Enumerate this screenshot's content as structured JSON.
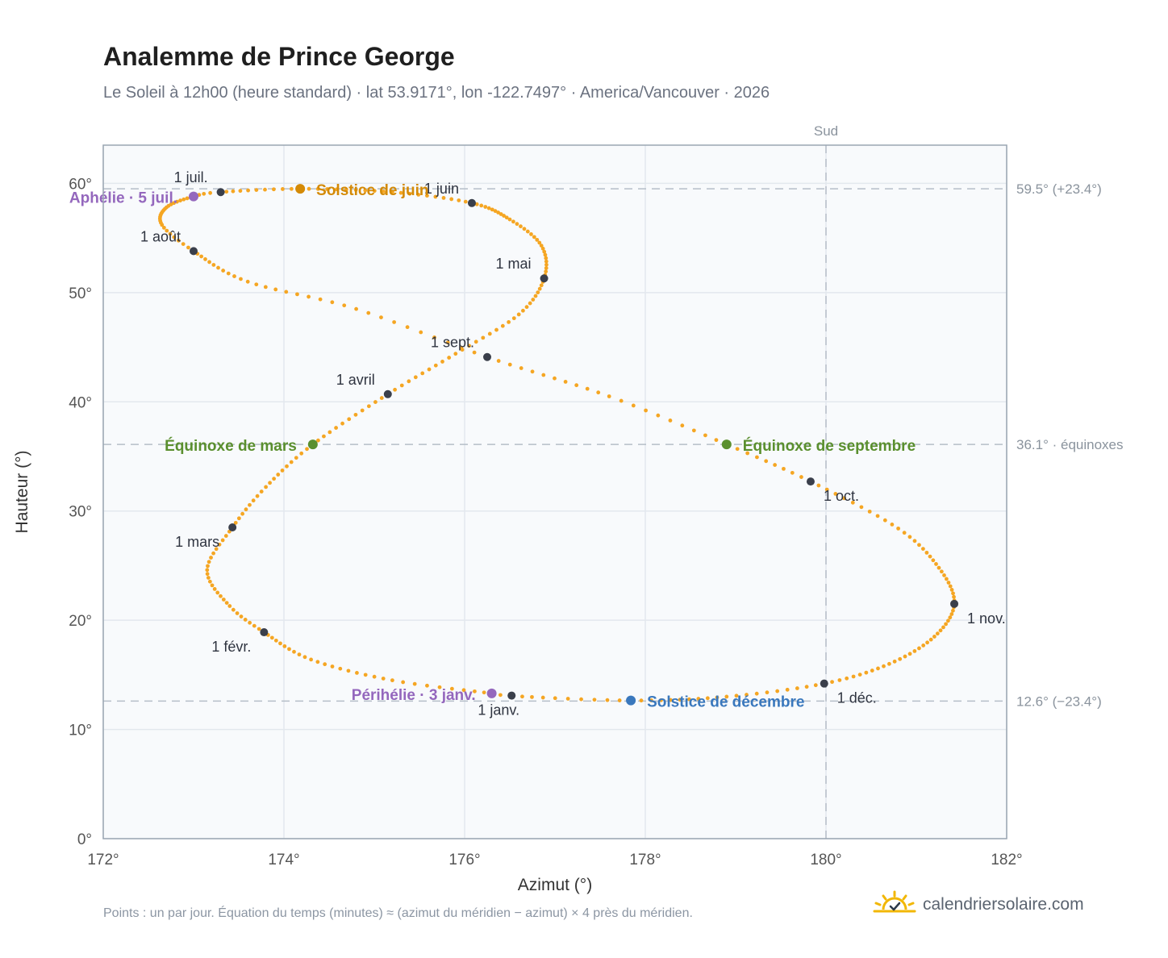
{
  "header": {
    "title": "Analemme de Prince George",
    "subtitle": "Le Soleil à 12h00 (heure standard) · lat 53.9171°, lon -122.7497° · America/Vancouver · 2026"
  },
  "footer": {
    "note": "Points : un par jour. Équation du temps (minutes) ≈ (azimut du méridien − azimut) × 4 près du méridien.",
    "brand": "calendriersolaire.com"
  },
  "colors": {
    "curve": "#f5a623",
    "month_dot": "#3a3f4b",
    "solstice_june": "#d48a06",
    "solstice_december": "#3a78bd",
    "equinox": "#5a8f2e",
    "apsis": "#9467bd",
    "plot_bg": "#f8fafc",
    "grid": "#e3e8ee",
    "ref_line": "#b5bec8"
  },
  "chart_data": {
    "type": "scatter",
    "title": "Analemme de Prince George",
    "xlabel": "Azimut (°)",
    "ylabel": "Hauteur (°)",
    "xlim": [
      172,
      182
    ],
    "ylim": [
      0,
      63.5
    ],
    "x_ticks": [
      "172°",
      "174°",
      "176°",
      "178°",
      "180°",
      "182°"
    ],
    "y_ticks": [
      "0°",
      "10°",
      "20°",
      "30°",
      "40°",
      "50°",
      "60°"
    ],
    "grid": true,
    "meridian": {
      "x": 180,
      "label": "Sud"
    },
    "reference_lines": [
      {
        "y": 59.5,
        "label": "59.5° (+23.4°)"
      },
      {
        "y": 36.1,
        "label": "36.1° · équinoxes"
      },
      {
        "y": 12.6,
        "label": "12.6° (−23.4°)"
      }
    ],
    "curve_keypoints": [
      {
        "day": 1,
        "az": 176.52,
        "alt": 13.1
      },
      {
        "day": 3,
        "az": 176.3,
        "alt": 13.3
      },
      {
        "day": 12,
        "az": 175.2,
        "alt": 14.5
      },
      {
        "day": 22,
        "az": 174.3,
        "alt": 16.4
      },
      {
        "day": 32,
        "az": 173.78,
        "alt": 18.9
      },
      {
        "day": 40,
        "az": 173.4,
        "alt": 21.3
      },
      {
        "day": 50,
        "az": 173.15,
        "alt": 24.6
      },
      {
        "day": 60,
        "az": 173.43,
        "alt": 28.5
      },
      {
        "day": 69,
        "az": 173.8,
        "alt": 32.2
      },
      {
        "day": 79,
        "az": 174.32,
        "alt": 36.1
      },
      {
        "day": 91,
        "az": 175.15,
        "alt": 40.7
      },
      {
        "day": 101,
        "az": 175.9,
        "alt": 44.4
      },
      {
        "day": 111,
        "az": 176.6,
        "alt": 48.0
      },
      {
        "day": 121,
        "az": 176.88,
        "alt": 51.3
      },
      {
        "day": 131,
        "az": 176.85,
        "alt": 54.3
      },
      {
        "day": 141,
        "az": 176.5,
        "alt": 56.7
      },
      {
        "day": 152,
        "az": 176.08,
        "alt": 58.2
      },
      {
        "day": 162,
        "az": 175.2,
        "alt": 59.2
      },
      {
        "day": 172,
        "az": 174.18,
        "alt": 59.5
      },
      {
        "day": 182,
        "az": 173.3,
        "alt": 59.2
      },
      {
        "day": 186,
        "az": 173.0,
        "alt": 58.8
      },
      {
        "day": 195,
        "az": 172.7,
        "alt": 57.8
      },
      {
        "day": 205,
        "az": 172.65,
        "alt": 56.2
      },
      {
        "day": 213,
        "az": 173.0,
        "alt": 53.8
      },
      {
        "day": 224,
        "az": 173.6,
        "alt": 51.0
      },
      {
        "day": 234,
        "az": 174.8,
        "alt": 48.5
      },
      {
        "day": 244,
        "az": 176.25,
        "alt": 44.1
      },
      {
        "day": 255,
        "az": 177.6,
        "alt": 40.5
      },
      {
        "day": 265,
        "az": 178.9,
        "alt": 36.1
      },
      {
        "day": 274,
        "az": 179.83,
        "alt": 32.7
      },
      {
        "day": 285,
        "az": 180.8,
        "alt": 28.4
      },
      {
        "day": 295,
        "az": 181.25,
        "alt": 24.8
      },
      {
        "day": 305,
        "az": 181.42,
        "alt": 21.5
      },
      {
        "day": 315,
        "az": 181.2,
        "alt": 18.5
      },
      {
        "day": 325,
        "az": 180.7,
        "alt": 16.0
      },
      {
        "day": 335,
        "az": 179.98,
        "alt": 14.2
      },
      {
        "day": 345,
        "az": 178.9,
        "alt": 13.0
      },
      {
        "day": 355,
        "az": 177.84,
        "alt": 12.65
      },
      {
        "day": 365,
        "az": 176.55,
        "alt": 13.05
      }
    ],
    "month_markers": [
      {
        "label": "1 janv.",
        "day": 1,
        "az": 176.52,
        "alt": 13.1,
        "anchor": "middle",
        "dx": -16,
        "dy": 24
      },
      {
        "label": "1 févr.",
        "day": 32,
        "az": 173.78,
        "alt": 18.9,
        "anchor": "end",
        "dx": -16,
        "dy": 24
      },
      {
        "label": "1 mars",
        "day": 60,
        "az": 173.43,
        "alt": 28.5,
        "anchor": "end",
        "dx": -16,
        "dy": 24
      },
      {
        "label": "1 avril",
        "day": 91,
        "az": 175.15,
        "alt": 40.7,
        "anchor": "end",
        "dx": -16,
        "dy": -12
      },
      {
        "label": "1 mai",
        "day": 121,
        "az": 176.88,
        "alt": 51.3,
        "anchor": "end",
        "dx": -16,
        "dy": -12
      },
      {
        "label": "1 juin",
        "day": 152,
        "az": 176.08,
        "alt": 58.2,
        "anchor": "end",
        "dx": -16,
        "dy": -12
      },
      {
        "label": "1 juil.",
        "day": 182,
        "az": 173.3,
        "alt": 59.2,
        "anchor": "end",
        "dx": -16,
        "dy": -12
      },
      {
        "label": "1 août",
        "day": 213,
        "az": 173.0,
        "alt": 53.8,
        "anchor": "end",
        "dx": -16,
        "dy": -12
      },
      {
        "label": "1 sept.",
        "day": 244,
        "az": 176.25,
        "alt": 44.1,
        "anchor": "end",
        "dx": -16,
        "dy": -12
      },
      {
        "label": "1 oct.",
        "day": 274,
        "az": 179.83,
        "alt": 32.7,
        "anchor": "start",
        "dx": 16,
        "dy": 24
      },
      {
        "label": "1 nov.",
        "day": 305,
        "az": 181.42,
        "alt": 21.5,
        "anchor": "start",
        "dx": 16,
        "dy": 24
      },
      {
        "label": "1 déc.",
        "day": 335,
        "az": 179.98,
        "alt": 14.2,
        "anchor": "start",
        "dx": 16,
        "dy": 24
      }
    ],
    "events": [
      {
        "label": "Solstice de juin",
        "az": 174.18,
        "alt": 59.5,
        "color_key": "solstice_june",
        "anchor": "start",
        "dx": 20,
        "dy": 8
      },
      {
        "label": "Solstice de décembre",
        "az": 177.84,
        "alt": 12.65,
        "color_key": "solstice_december",
        "anchor": "start",
        "dx": 20,
        "dy": 8
      },
      {
        "label": "Équinoxe de mars",
        "az": 174.32,
        "alt": 36.1,
        "color_key": "equinox",
        "anchor": "end",
        "dx": -20,
        "dy": 8
      },
      {
        "label": "Équinoxe de septembre",
        "az": 178.9,
        "alt": 36.1,
        "color_key": "equinox",
        "anchor": "start",
        "dx": 20,
        "dy": 8
      },
      {
        "label": "Aphélie · 5 juil.",
        "az": 173.0,
        "alt": 58.8,
        "color_key": "apsis",
        "anchor": "end",
        "dx": -20,
        "dy": 8
      },
      {
        "label": "Périhélie · 3 janv.",
        "az": 176.3,
        "alt": 13.3,
        "color_key": "apsis",
        "anchor": "end",
        "dx": -20,
        "dy": 8
      }
    ]
  }
}
